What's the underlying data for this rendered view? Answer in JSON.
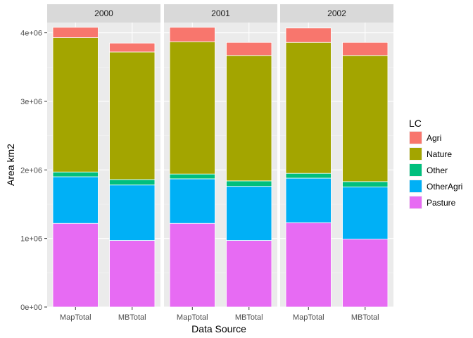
{
  "chart_data": {
    "type": "bar",
    "stacked": true,
    "facets": [
      "2000",
      "2001",
      "2002"
    ],
    "categories": [
      "MapTotal",
      "MBTotal"
    ],
    "xlabel": "Data Source",
    "ylabel": "Area km2",
    "ylim": [
      0,
      4150000
    ],
    "yticks": [
      0,
      1000000,
      2000000,
      3000000,
      4000000
    ],
    "ytick_labels": [
      "0e+00",
      "1e+06",
      "2e+06",
      "3e+06",
      "4e+06"
    ],
    "grid": true,
    "legend": {
      "title": "LC",
      "position": "right"
    },
    "series": [
      {
        "name": "Pasture",
        "color": "#E76BF3",
        "values": {
          "2000": [
            1220000,
            970000
          ],
          "2001": [
            1220000,
            970000
          ],
          "2002": [
            1230000,
            990000
          ]
        }
      },
      {
        "name": "OtherAgri",
        "color": "#00B0F6",
        "values": {
          "2000": [
            680000,
            810000
          ],
          "2001": [
            650000,
            790000
          ],
          "2002": [
            650000,
            760000
          ]
        }
      },
      {
        "name": "Other",
        "color": "#00BF7D",
        "values": {
          "2000": [
            70000,
            80000
          ],
          "2001": [
            70000,
            80000
          ],
          "2002": [
            70000,
            80000
          ]
        }
      },
      {
        "name": "Nature",
        "color": "#A3A500",
        "values": {
          "2000": [
            1960000,
            1860000
          ],
          "2001": [
            1930000,
            1830000
          ],
          "2002": [
            1910000,
            1840000
          ]
        }
      },
      {
        "name": "Agri",
        "color": "#F8766D",
        "values": {
          "2000": [
            150000,
            130000
          ],
          "2001": [
            210000,
            190000
          ],
          "2002": [
            210000,
            190000
          ]
        }
      }
    ],
    "legend_order": [
      "Agri",
      "Nature",
      "Other",
      "OtherAgri",
      "Pasture"
    ]
  }
}
